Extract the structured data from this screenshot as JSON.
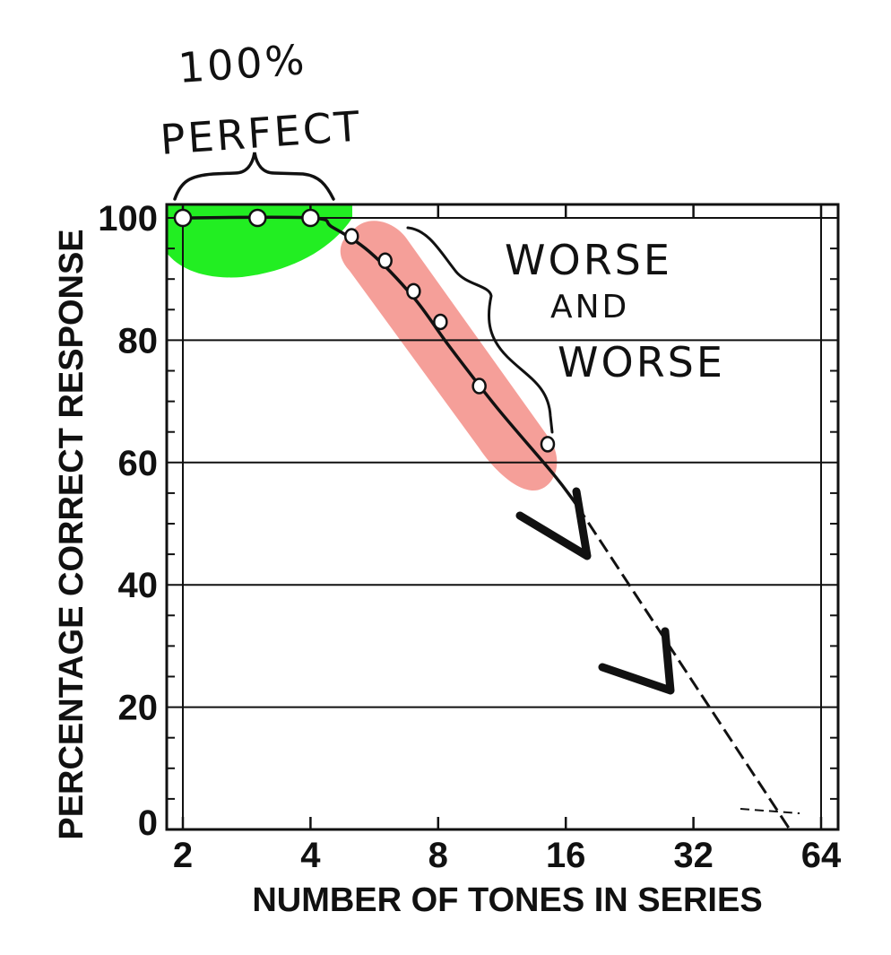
{
  "chart_data": {
    "type": "line",
    "x_scale": "log2",
    "xlabel": "NUMBER OF TONES IN SERIES",
    "ylabel": "PERCENTAGE CORRECT RESPONSE",
    "x_ticks": [
      2,
      4,
      8,
      16,
      32,
      64
    ],
    "x_tick_labels": [
      "2",
      "4",
      "8",
      "16",
      "32",
      "64"
    ],
    "y_ticks": [
      0,
      20,
      40,
      60,
      80,
      100
    ],
    "y_tick_labels": [
      "0",
      "20",
      "40",
      "60",
      "80",
      "100"
    ],
    "xlim": [
      2,
      64
    ],
    "ylim": [
      0,
      100
    ],
    "grid": "horizontal",
    "series": [
      {
        "points": [
          {
            "x": 2,
            "y": 100
          },
          {
            "x": 3,
            "y": 100
          },
          {
            "x": 4,
            "y": 100
          },
          {
            "x": 5,
            "y": 97
          },
          {
            "x": 6,
            "y": 93
          },
          {
            "x": 7,
            "y": 88
          },
          {
            "x": 8.1,
            "y": 83
          },
          {
            "x": 10,
            "y": 72.5
          },
          {
            "x": 14.5,
            "y": 63
          }
        ]
      }
    ],
    "fit_curve": [
      {
        "x": 2,
        "y": 100
      },
      {
        "x": 4,
        "y": 100
      },
      {
        "x": 4.5,
        "y": 98.5
      },
      {
        "x": 5.5,
        "y": 94.5
      },
      {
        "x": 7,
        "y": 87
      },
      {
        "x": 8.5,
        "y": 79
      },
      {
        "x": 11,
        "y": 69
      },
      {
        "x": 15,
        "y": 58
      },
      {
        "x": 17,
        "y": 53
      }
    ],
    "extrapolation": [
      {
        "x": 17,
        "y": 53
      },
      {
        "x": 54,
        "y": 0
      }
    ],
    "annotations": {
      "perfect": [
        "100%",
        "PERFECT"
      ],
      "worse": [
        "WORSE",
        "AND",
        "WORSE"
      ]
    },
    "colors": {
      "perfect_region": "#22ee22",
      "worse_region": "#f49a94",
      "line": "#111111"
    }
  }
}
